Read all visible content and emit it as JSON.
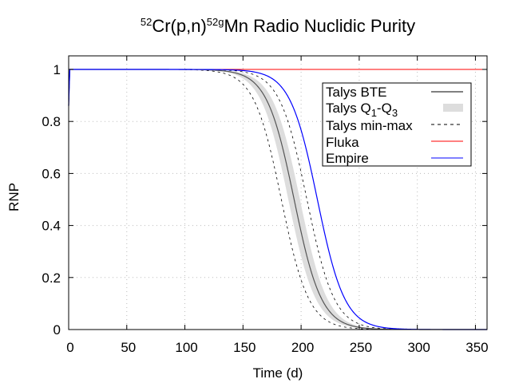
{
  "chart_data": {
    "type": "line",
    "title": {
      "sup1": "52",
      "part1": "Cr(p,n)",
      "sup2": "52g",
      "part2": "Mn Radio Nuclidic Purity"
    },
    "xlabel": "Time (d)",
    "ylabel": "RNP",
    "xlim": [
      0,
      360
    ],
    "ylim": [
      0,
      1.05
    ],
    "xticks": [
      0,
      50,
      100,
      150,
      200,
      250,
      300,
      350
    ],
    "yticks": [
      0,
      0.2,
      0.4,
      0.6,
      0.8,
      1
    ],
    "ytick_labels": [
      "0",
      "0.2",
      "0.4",
      "0.6",
      "0.8",
      "1"
    ],
    "grid": true,
    "legend_position": "top-right",
    "series": [
      {
        "name": "Talys BTE",
        "style": "solid",
        "color": "#000000",
        "t50": 194,
        "k": 0.085,
        "t0": 0.9
      },
      {
        "name": "Talys Q1-Q3",
        "style": "band",
        "color": "#dddddd",
        "t50_low": 189,
        "t50_high": 199,
        "k": 0.085
      },
      {
        "name": "Talys min-max",
        "style": "dashed",
        "color": "#000000",
        "t50_low": 183,
        "t50_high": 205,
        "k": 0.085
      },
      {
        "name": "Fluka",
        "style": "solid",
        "color": "#ff0000",
        "value": 1.0
      },
      {
        "name": "Empire",
        "style": "solid",
        "color": "#0000ff",
        "t50": 214,
        "k": 0.085,
        "t0": 0.9
      }
    ],
    "legend": {
      "talys_bte": "Talys BTE",
      "talys_q_prefix": "Talys Q",
      "talys_q_sub1": "1",
      "talys_q_mid": "-Q",
      "talys_q_sub2": "3",
      "talys_minmax": "Talys min-max",
      "fluka": "Fluka",
      "empire": "Empire"
    }
  }
}
